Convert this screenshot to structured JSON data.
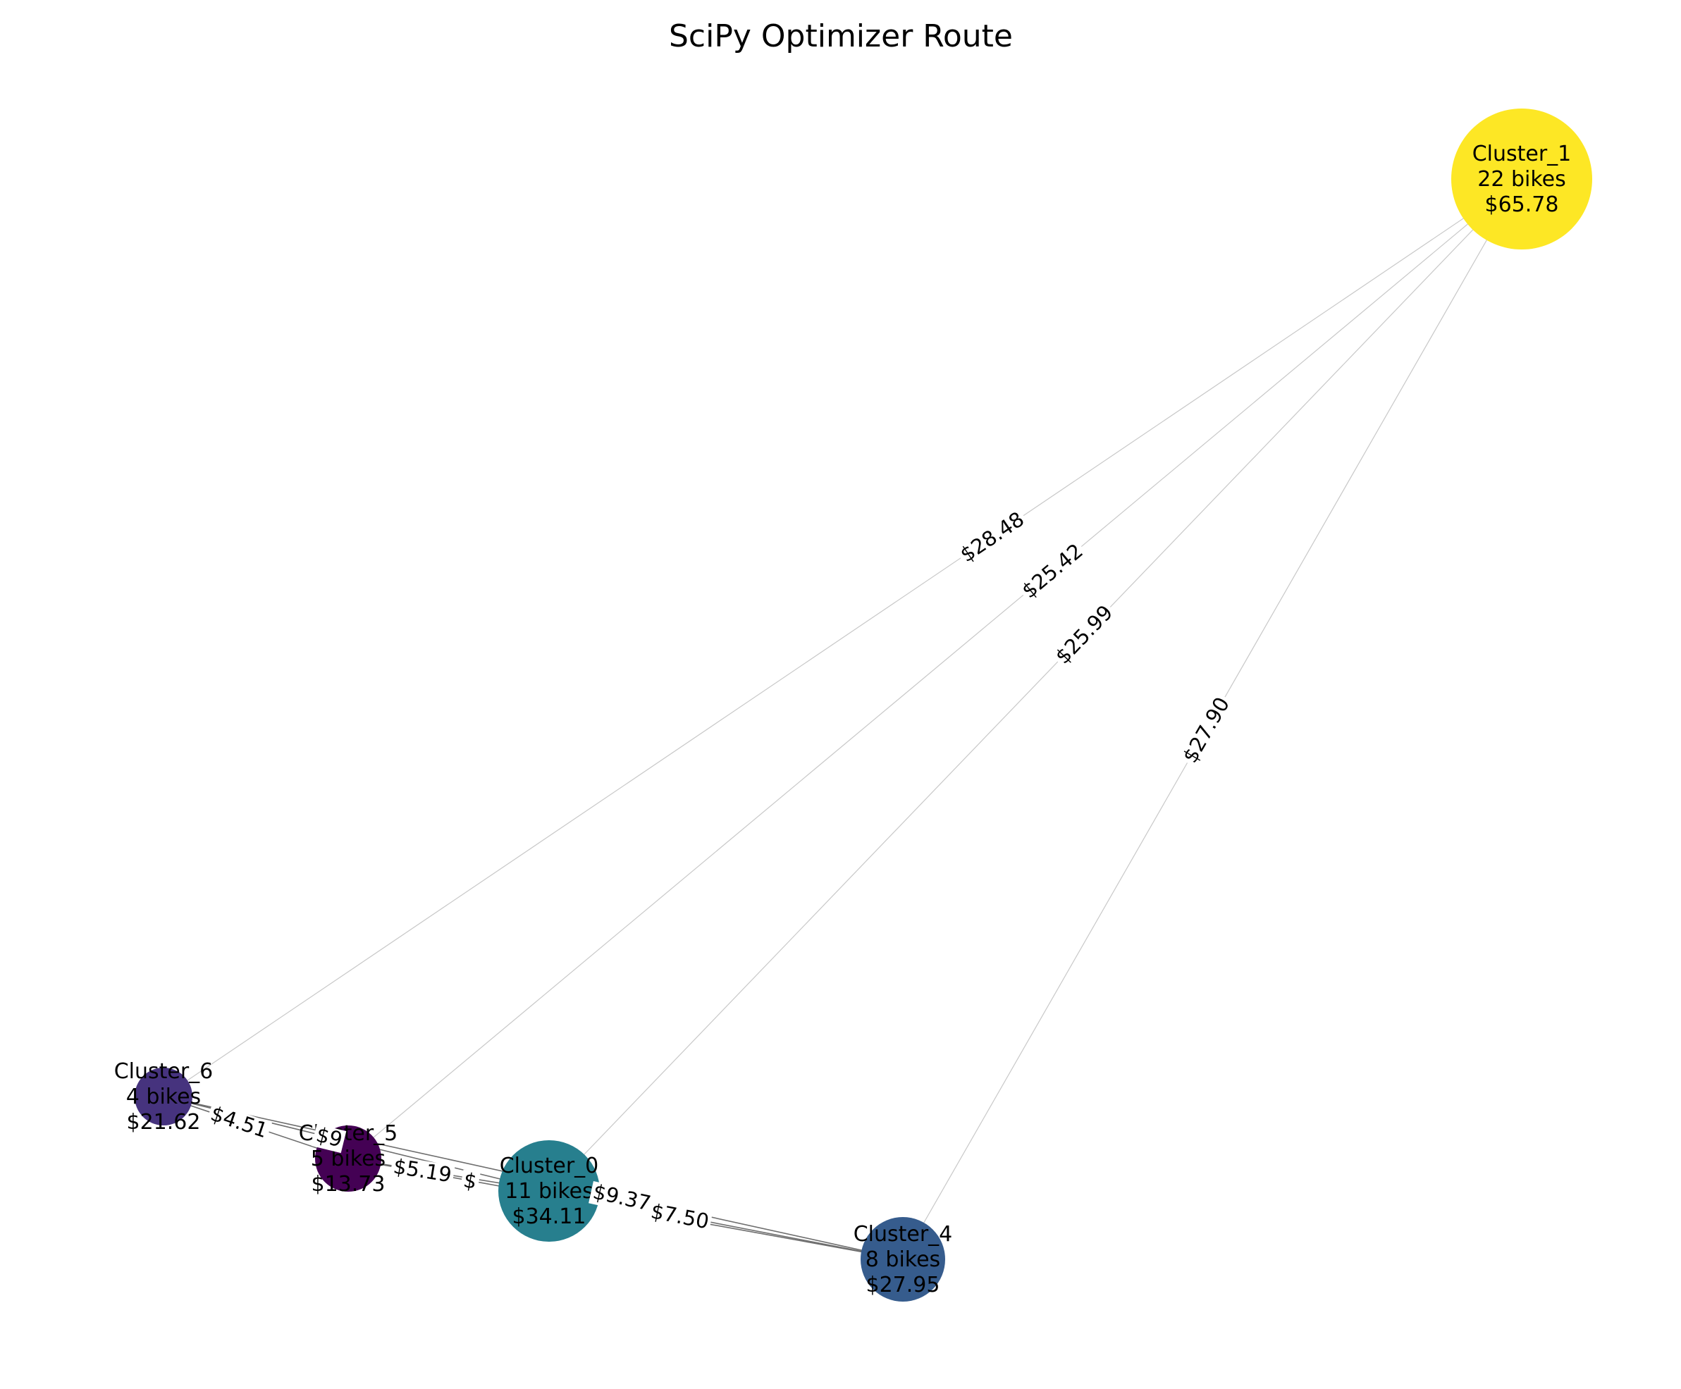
{
  "title": "SciPy Optimizer Route",
  "chart_data": {
    "type": "network",
    "title": "SciPy Optimizer Route",
    "nodes": [
      {
        "id": "Cluster_1",
        "label": "Cluster_1",
        "bikes": "22 bikes",
        "cost": "$65.78",
        "color": "#fde725"
      },
      {
        "id": "Cluster_6",
        "label": "Cluster_6",
        "bikes": "4 bikes",
        "cost": "$21.62",
        "color": "#46337e"
      },
      {
        "id": "Cluster_5",
        "label": "Cluster_5",
        "bikes": "5 bikes",
        "cost": "$13.73",
        "color": "#440154"
      },
      {
        "id": "Cluster_0",
        "label": "Cluster_0",
        "bikes": "11 bikes",
        "cost": "$34.11",
        "color": "#277f8e"
      },
      {
        "id": "Cluster_4",
        "label": "Cluster_4",
        "bikes": "8 bikes",
        "cost": "$27.95",
        "color": "#365c8d"
      }
    ],
    "edges": [
      {
        "source": "Cluster_1",
        "target": "Cluster_6",
        "label": "$28.48",
        "style": "light"
      },
      {
        "source": "Cluster_1",
        "target": "Cluster_5",
        "label": "$25.42",
        "style": "light"
      },
      {
        "source": "Cluster_1",
        "target": "Cluster_0",
        "label": "$25.99",
        "style": "light"
      },
      {
        "source": "Cluster_1",
        "target": "Cluster_4",
        "label": "$27.90",
        "style": "light"
      },
      {
        "source": "Cluster_6",
        "target": "Cluster_5",
        "label": "$4.51",
        "style": "dark"
      },
      {
        "source": "Cluster_6",
        "target": "Cluster_0",
        "label": "$9",
        "style": "dark"
      },
      {
        "source": "Cluster_5",
        "target": "Cluster_0",
        "label": "$5.19",
        "style": "dark"
      },
      {
        "source": "Cluster_5",
        "target": "Cluster_4",
        "label": "$",
        "style": "dark"
      },
      {
        "source": "Cluster_6",
        "target": "Cluster_4",
        "label": "$9.37",
        "style": "dark"
      },
      {
        "source": "Cluster_0",
        "target": "Cluster_4",
        "label": "$7.50",
        "style": "dark"
      }
    ]
  }
}
